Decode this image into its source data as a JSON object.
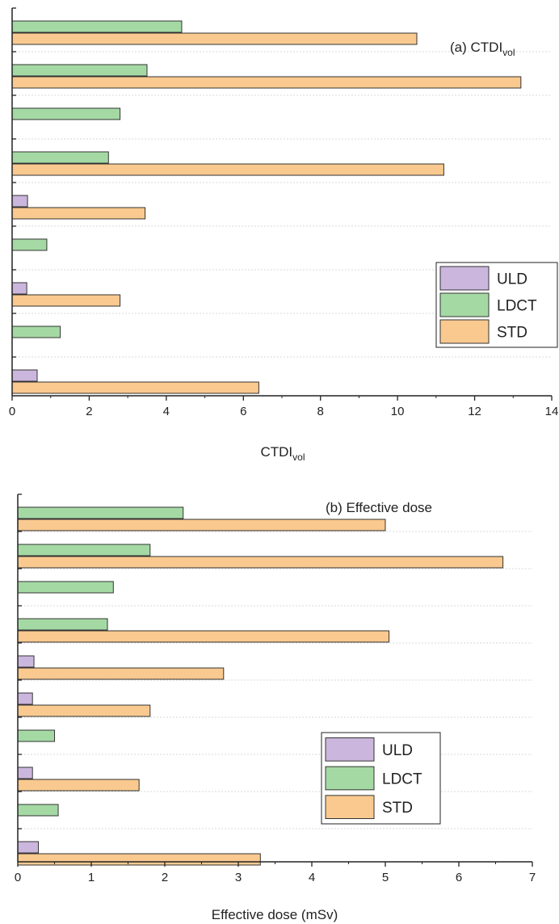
{
  "colors": {
    "ULD": "#cbb6dd",
    "LDCT": "#a4d9a4",
    "STD": "#f9c98f",
    "axis": "#222222",
    "grid": "#d8d8d8",
    "bar_edge": "#333333"
  },
  "chart_data": [
    {
      "type": "bar",
      "orientation": "horizontal",
      "annotation": {
        "main": "(a) CTDI",
        "sub": "vol"
      },
      "xlabel": {
        "main": "CTDI",
        "sub": "vol"
      },
      "xlim": [
        0,
        14
      ],
      "xticks": [
        0,
        2,
        4,
        6,
        8,
        10,
        12,
        14
      ],
      "xtick_labels": [
        "0",
        "2",
        "4",
        "6",
        "8",
        "10",
        "12",
        "14"
      ],
      "legend": {
        "position": "right",
        "entries": [
          "ULD",
          "LDCT",
          "STD"
        ]
      },
      "groups": [
        {
          "ULD": null,
          "LDCT": 4.4,
          "STD": 10.5
        },
        {
          "ULD": null,
          "LDCT": 3.5,
          "STD": 13.2
        },
        {
          "ULD": null,
          "LDCT": 2.8,
          "STD": null
        },
        {
          "ULD": null,
          "LDCT": 2.5,
          "STD": 11.2
        },
        {
          "ULD": 0.4,
          "LDCT": null,
          "STD": 3.45
        },
        {
          "ULD": null,
          "LDCT": 0.9,
          "STD": null
        },
        {
          "ULD": 0.38,
          "LDCT": null,
          "STD": 2.8
        },
        {
          "ULD": null,
          "LDCT": 1.25,
          "STD": null
        },
        {
          "ULD": 0.65,
          "LDCT": null,
          "STD": 6.4
        }
      ],
      "grid": true
    },
    {
      "type": "bar",
      "orientation": "horizontal",
      "annotation": {
        "main": "(b) Effective dose",
        "sub": ""
      },
      "xlabel": {
        "main": "Effective dose (mSv)",
        "sub": ""
      },
      "xlim": [
        0,
        7
      ],
      "xticks": [
        0,
        1,
        2,
        3,
        4,
        5,
        6,
        7
      ],
      "xtick_labels": [
        "0",
        "1",
        "2",
        "3",
        "4",
        "5",
        "6",
        "7"
      ],
      "legend": {
        "position": "lower-right",
        "entries": [
          "ULD",
          "LDCT",
          "STD"
        ]
      },
      "groups": [
        {
          "ULD": null,
          "LDCT": 2.25,
          "STD": 5.0
        },
        {
          "ULD": null,
          "LDCT": 1.8,
          "STD": 6.6
        },
        {
          "ULD": null,
          "LDCT": 1.3,
          "STD": null
        },
        {
          "ULD": null,
          "LDCT": 1.22,
          "STD": 5.05
        },
        {
          "ULD": 0.22,
          "LDCT": null,
          "STD": 2.8
        },
        {
          "ULD": 0.2,
          "LDCT": null,
          "STD": 1.8
        },
        {
          "ULD": null,
          "LDCT": 0.5,
          "STD": null
        },
        {
          "ULD": 0.2,
          "LDCT": null,
          "STD": 1.65
        },
        {
          "ULD": null,
          "LDCT": 0.55,
          "STD": null
        },
        {
          "ULD": 0.28,
          "LDCT": null,
          "STD": 3.3
        }
      ],
      "grid": true
    }
  ]
}
